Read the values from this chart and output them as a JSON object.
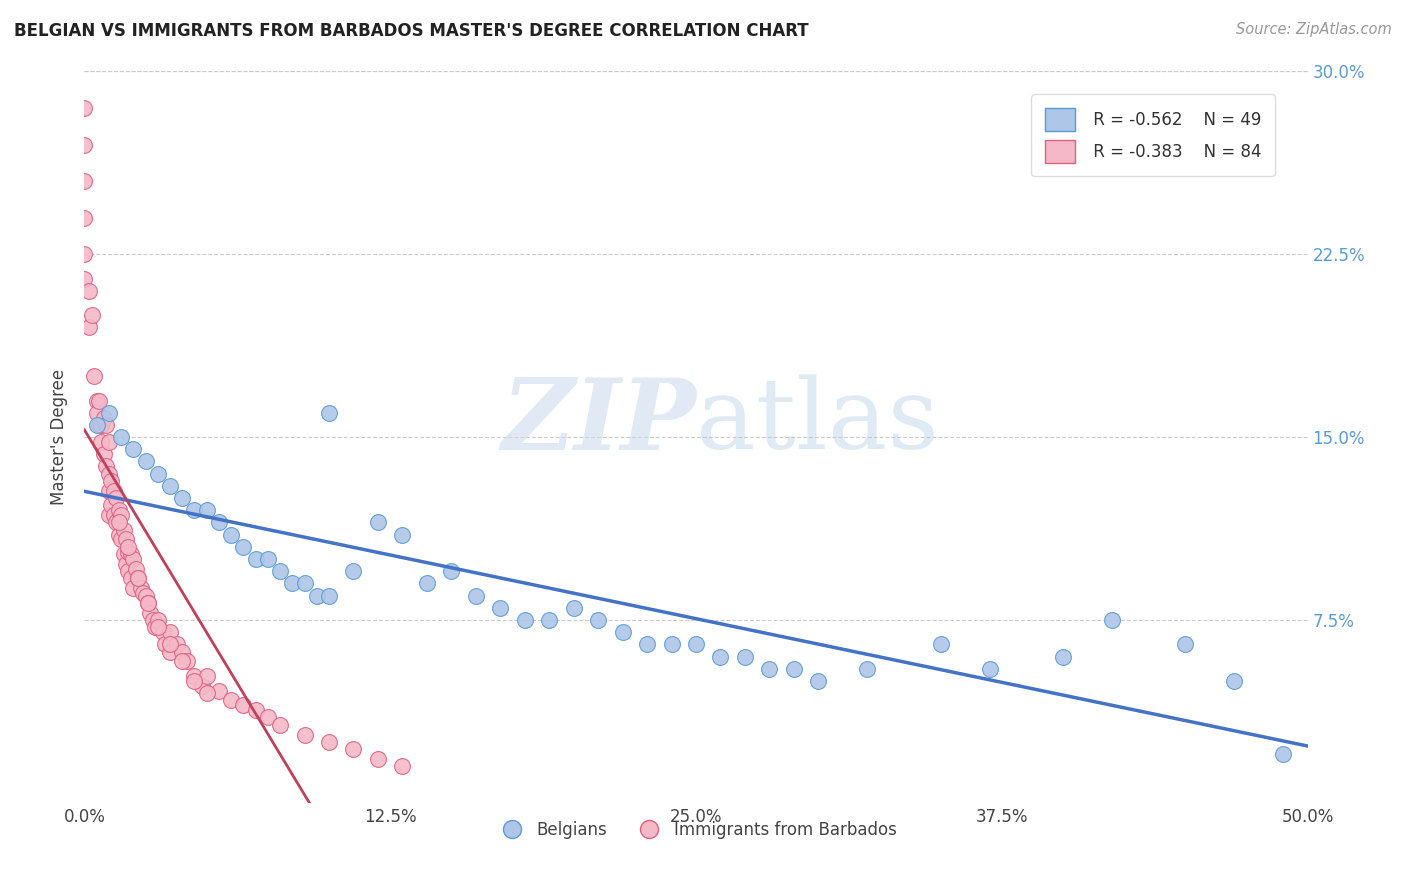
{
  "title": "BELGIAN VS IMMIGRANTS FROM BARBADOS MASTER'S DEGREE CORRELATION CHART",
  "source": "Source: ZipAtlas.com",
  "ylabel": "Master's Degree",
  "xlim": [
    0.0,
    0.5
  ],
  "ylim": [
    0.0,
    0.3
  ],
  "xticks": [
    0.0,
    0.125,
    0.25,
    0.375,
    0.5
  ],
  "xtick_labels": [
    "0.0%",
    "12.5%",
    "25.0%",
    "37.5%",
    "50.0%"
  ],
  "yticks": [
    0.0,
    0.075,
    0.15,
    0.225,
    0.3
  ],
  "ytick_labels": [
    "",
    "7.5%",
    "15.0%",
    "22.5%",
    "30.0%"
  ],
  "blue_color": "#aec6e8",
  "blue_edge": "#5b9bd5",
  "pink_color": "#f4b8c8",
  "pink_edge": "#e06080",
  "blue_line_color": "#4472c4",
  "pink_line_color": "#c0405a",
  "legend_R1": "R = -0.562",
  "legend_N1": "N = 49",
  "legend_R2": "R = -0.383",
  "legend_N2": "N = 84",
  "watermark_zip": "ZIP",
  "watermark_atlas": "atlas",
  "belgians_x": [
    0.005,
    0.01,
    0.015,
    0.02,
    0.025,
    0.03,
    0.035,
    0.04,
    0.045,
    0.05,
    0.055,
    0.06,
    0.065,
    0.07,
    0.075,
    0.08,
    0.085,
    0.09,
    0.095,
    0.1,
    0.1,
    0.11,
    0.12,
    0.13,
    0.14,
    0.15,
    0.16,
    0.17,
    0.18,
    0.19,
    0.2,
    0.21,
    0.22,
    0.23,
    0.24,
    0.25,
    0.26,
    0.27,
    0.28,
    0.29,
    0.3,
    0.32,
    0.35,
    0.37,
    0.4,
    0.42,
    0.45,
    0.47,
    0.49
  ],
  "belgians_y": [
    0.155,
    0.16,
    0.15,
    0.145,
    0.14,
    0.135,
    0.13,
    0.125,
    0.12,
    0.12,
    0.115,
    0.11,
    0.105,
    0.1,
    0.1,
    0.095,
    0.09,
    0.09,
    0.085,
    0.085,
    0.16,
    0.095,
    0.115,
    0.11,
    0.09,
    0.095,
    0.085,
    0.08,
    0.075,
    0.075,
    0.08,
    0.075,
    0.07,
    0.065,
    0.065,
    0.065,
    0.06,
    0.06,
    0.055,
    0.055,
    0.05,
    0.055,
    0.065,
    0.055,
    0.06,
    0.075,
    0.065,
    0.05,
    0.02
  ],
  "barbados_x": [
    0.0,
    0.0,
    0.0,
    0.0,
    0.0,
    0.0,
    0.002,
    0.002,
    0.003,
    0.004,
    0.005,
    0.005,
    0.006,
    0.006,
    0.007,
    0.007,
    0.008,
    0.008,
    0.009,
    0.009,
    0.01,
    0.01,
    0.01,
    0.01,
    0.011,
    0.011,
    0.012,
    0.012,
    0.013,
    0.013,
    0.014,
    0.014,
    0.015,
    0.015,
    0.016,
    0.016,
    0.017,
    0.017,
    0.018,
    0.018,
    0.019,
    0.019,
    0.02,
    0.02,
    0.021,
    0.022,
    0.023,
    0.024,
    0.025,
    0.026,
    0.027,
    0.028,
    0.029,
    0.03,
    0.032,
    0.033,
    0.035,
    0.035,
    0.038,
    0.04,
    0.042,
    0.045,
    0.048,
    0.05,
    0.055,
    0.06,
    0.065,
    0.07,
    0.075,
    0.08,
    0.09,
    0.1,
    0.11,
    0.12,
    0.13,
    0.014,
    0.018,
    0.022,
    0.026,
    0.03,
    0.035,
    0.04,
    0.045,
    0.05
  ],
  "barbados_y": [
    0.285,
    0.27,
    0.255,
    0.24,
    0.225,
    0.215,
    0.21,
    0.195,
    0.2,
    0.175,
    0.165,
    0.16,
    0.165,
    0.155,
    0.155,
    0.148,
    0.158,
    0.143,
    0.155,
    0.138,
    0.148,
    0.135,
    0.128,
    0.118,
    0.132,
    0.122,
    0.128,
    0.118,
    0.125,
    0.115,
    0.12,
    0.11,
    0.118,
    0.108,
    0.112,
    0.102,
    0.108,
    0.098,
    0.103,
    0.095,
    0.102,
    0.092,
    0.1,
    0.088,
    0.096,
    0.092,
    0.088,
    0.086,
    0.085,
    0.082,
    0.078,
    0.075,
    0.072,
    0.075,
    0.07,
    0.065,
    0.07,
    0.062,
    0.065,
    0.062,
    0.058,
    0.052,
    0.048,
    0.052,
    0.046,
    0.042,
    0.04,
    0.038,
    0.035,
    0.032,
    0.028,
    0.025,
    0.022,
    0.018,
    0.015,
    0.115,
    0.105,
    0.092,
    0.082,
    0.072,
    0.065,
    0.058,
    0.05,
    0.045
  ]
}
